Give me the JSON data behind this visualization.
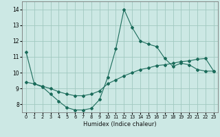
{
  "title": "",
  "xlabel": "Humidex (Indice chaleur)",
  "ylabel": "",
  "bg_color": "#cce8e4",
  "grid_color": "#a0c8c0",
  "line_color": "#1a6b5a",
  "xlim": [
    -0.5,
    23.5
  ],
  "ylim": [
    7.5,
    14.5
  ],
  "yticks": [
    8,
    9,
    10,
    11,
    12,
    13,
    14
  ],
  "xticks": [
    0,
    1,
    2,
    3,
    4,
    5,
    6,
    7,
    8,
    9,
    10,
    11,
    12,
    13,
    14,
    15,
    16,
    17,
    18,
    19,
    20,
    21,
    22,
    23
  ],
  "series1_x": [
    0,
    1,
    2,
    3,
    4,
    5,
    6,
    7,
    8,
    9,
    10,
    11,
    12,
    13,
    14,
    15,
    16,
    17,
    18,
    19,
    20,
    21,
    22,
    23
  ],
  "series1_y": [
    11.3,
    9.3,
    9.1,
    8.65,
    8.2,
    7.8,
    7.65,
    7.65,
    7.75,
    8.3,
    9.7,
    11.5,
    14.0,
    12.85,
    12.0,
    11.8,
    11.65,
    10.9,
    10.4,
    10.6,
    10.5,
    10.2,
    10.1,
    10.1
  ],
  "series2_x": [
    0,
    1,
    2,
    3,
    4,
    5,
    6,
    7,
    8,
    9,
    10,
    11,
    12,
    13,
    14,
    15,
    16,
    17,
    18,
    19,
    20,
    21,
    22,
    23
  ],
  "series2_y": [
    9.4,
    9.3,
    9.15,
    9.0,
    8.8,
    8.65,
    8.55,
    8.55,
    8.65,
    8.85,
    9.3,
    9.55,
    9.8,
    10.0,
    10.2,
    10.3,
    10.45,
    10.5,
    10.6,
    10.7,
    10.75,
    10.85,
    10.9,
    10.1
  ],
  "xlabel_fontsize": 6.0,
  "tick_fontsize": 5.5
}
